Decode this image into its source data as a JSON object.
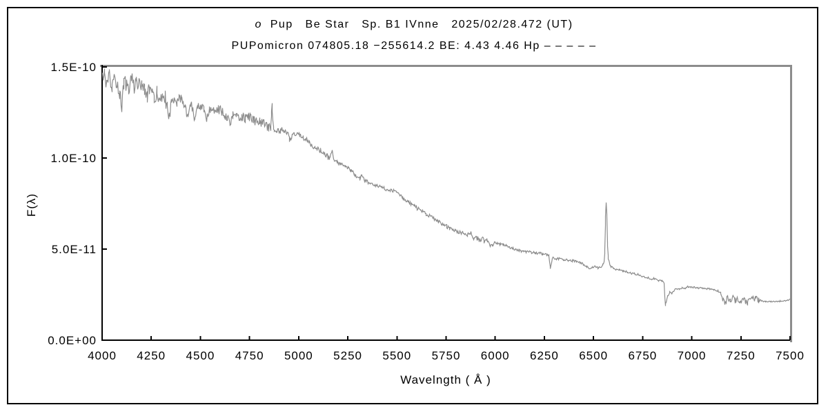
{
  "header": {
    "star_letter": "o",
    "title_rest": "  Pup   Be Star   Sp. B1 IVnne   2025/02/28.472 (UT)",
    "subtitle": "PUPomicron 074805.18 −255614.2 BE: 4.43 4.46 Hp – – – – –"
  },
  "chart_data": {
    "type": "line",
    "title": "o  Pup   Be Star   Sp. B1 IVnne   2025/02/28.472 (UT)",
    "subtitle": "PUPomicron 074805.18 −255614.2 BE: 4.43 4.46 Hp – – – – –",
    "xlabel": "Wavelngth ( Å )",
    "ylabel": "F(λ)",
    "xlim": [
      4000,
      7500
    ],
    "ylim_e11": [
      0,
      15
    ],
    "grid": false,
    "legend": false,
    "xticks": [
      4000,
      4250,
      4500,
      4750,
      5000,
      5250,
      5500,
      5750,
      6000,
      6250,
      6500,
      6750,
      7000,
      7250,
      7500
    ],
    "yticks": [
      {
        "value_e11": 0,
        "label": "0.0E+00"
      },
      {
        "value_e11": 5,
        "label": "5.0E-11"
      },
      {
        "value_e11": 10,
        "label": "1.0E-10"
      },
      {
        "value_e11": 15,
        "label": "1.5E-10"
      }
    ],
    "flux_scale": "1E-11",
    "colors": {
      "line": "#8c8c8c",
      "axis": "#000000",
      "bevel": "#8c8c8c",
      "background": "#ffffff"
    },
    "series": [
      {
        "name": "spectrum",
        "points_e11": [
          [
            4000,
            14.3
          ],
          [
            4012,
            14.7
          ],
          [
            4022,
            13.9
          ],
          [
            4035,
            14.5
          ],
          [
            4048,
            13.8
          ],
          [
            4060,
            14.4
          ],
          [
            4075,
            14.1
          ],
          [
            4088,
            13.6
          ],
          [
            4097,
            12.8
          ],
          [
            4110,
            14.3
          ],
          [
            4122,
            14.0
          ],
          [
            4135,
            13.7
          ],
          [
            4147,
            14.6
          ],
          [
            4160,
            13.9
          ],
          [
            4172,
            14.3
          ],
          [
            4185,
            14.0
          ],
          [
            4200,
            14.2
          ],
          [
            4215,
            13.7
          ],
          [
            4227,
            13.3
          ],
          [
            4240,
            13.9
          ],
          [
            4252,
            13.5
          ],
          [
            4265,
            13.1
          ],
          [
            4278,
            13.6
          ],
          [
            4290,
            13.4
          ],
          [
            4305,
            13.2
          ],
          [
            4318,
            13.4
          ],
          [
            4330,
            12.7
          ],
          [
            4340,
            12.4
          ],
          [
            4352,
            13.3
          ],
          [
            4365,
            13.1
          ],
          [
            4378,
            12.9
          ],
          [
            4390,
            13.3
          ],
          [
            4405,
            13.2
          ],
          [
            4420,
            13.0
          ],
          [
            4434,
            12.2
          ],
          [
            4448,
            13.0
          ],
          [
            4460,
            12.7
          ],
          [
            4471,
            12.0
          ],
          [
            4485,
            12.9
          ],
          [
            4500,
            12.9
          ],
          [
            4515,
            12.6
          ],
          [
            4530,
            12.2
          ],
          [
            4545,
            12.8
          ],
          [
            4560,
            12.6
          ],
          [
            4575,
            12.8
          ],
          [
            4590,
            12.7
          ],
          [
            4605,
            12.6
          ],
          [
            4620,
            12.4
          ],
          [
            4635,
            12.3
          ],
          [
            4650,
            11.9
          ],
          [
            4665,
            12.4
          ],
          [
            4680,
            12.3
          ],
          [
            4695,
            12.2
          ],
          [
            4710,
            12.3
          ],
          [
            4725,
            12.2
          ],
          [
            4740,
            12.3
          ],
          [
            4755,
            12.2
          ],
          [
            4770,
            12.1
          ],
          [
            4785,
            12.0
          ],
          [
            4800,
            12.0
          ],
          [
            4815,
            11.9
          ],
          [
            4830,
            11.8
          ],
          [
            4845,
            11.7
          ],
          [
            4855,
            11.6
          ],
          [
            4859,
            12.3
          ],
          [
            4862,
            13.0
          ],
          [
            4865,
            12.5
          ],
          [
            4869,
            11.7
          ],
          [
            4875,
            11.5
          ],
          [
            4885,
            11.5
          ],
          [
            4895,
            11.6
          ],
          [
            4905,
            11.5
          ],
          [
            4915,
            11.6
          ],
          [
            4925,
            11.4
          ],
          [
            4935,
            11.4
          ],
          [
            4945,
            11.3
          ],
          [
            4952,
            11.0
          ],
          [
            4962,
            11.2
          ],
          [
            4975,
            11.3
          ],
          [
            4990,
            11.4
          ],
          [
            5005,
            11.3
          ],
          [
            5020,
            11.2
          ],
          [
            5035,
            11.0
          ],
          [
            5050,
            10.9
          ],
          [
            5065,
            10.7
          ],
          [
            5080,
            10.6
          ],
          [
            5095,
            10.5
          ],
          [
            5110,
            10.4
          ],
          [
            5125,
            10.3
          ],
          [
            5140,
            10.2
          ],
          [
            5155,
            10.0
          ],
          [
            5169,
            10.4
          ],
          [
            5178,
            9.9
          ],
          [
            5192,
            9.8
          ],
          [
            5206,
            9.7
          ],
          [
            5220,
            9.65
          ],
          [
            5235,
            9.55
          ],
          [
            5250,
            9.45
          ],
          [
            5265,
            9.3
          ],
          [
            5280,
            9.15
          ],
          [
            5295,
            9.0
          ],
          [
            5310,
            8.9
          ],
          [
            5320,
            9.1
          ],
          [
            5332,
            8.8
          ],
          [
            5347,
            8.7
          ],
          [
            5362,
            8.6
          ],
          [
            5377,
            8.55
          ],
          [
            5392,
            8.5
          ],
          [
            5407,
            8.45
          ],
          [
            5422,
            8.4
          ],
          [
            5437,
            8.35
          ],
          [
            5452,
            8.3
          ],
          [
            5467,
            8.25
          ],
          [
            5482,
            8.2
          ],
          [
            5497,
            8.15
          ],
          [
            5512,
            8.0
          ],
          [
            5527,
            7.85
          ],
          [
            5542,
            7.7
          ],
          [
            5557,
            7.6
          ],
          [
            5572,
            7.5
          ],
          [
            5587,
            7.4
          ],
          [
            5602,
            7.25
          ],
          [
            5617,
            7.15
          ],
          [
            5632,
            7.05
          ],
          [
            5647,
            6.95
          ],
          [
            5662,
            6.85
          ],
          [
            5677,
            6.75
          ],
          [
            5692,
            6.65
          ],
          [
            5707,
            6.55
          ],
          [
            5722,
            6.45
          ],
          [
            5737,
            6.35
          ],
          [
            5752,
            6.25
          ],
          [
            5767,
            6.15
          ],
          [
            5782,
            6.1
          ],
          [
            5797,
            6.0
          ],
          [
            5812,
            5.95
          ],
          [
            5827,
            5.9
          ],
          [
            5842,
            5.85
          ],
          [
            5857,
            5.8
          ],
          [
            5876,
            5.9
          ],
          [
            5885,
            5.6
          ],
          [
            5895,
            5.65
          ],
          [
            5910,
            5.6
          ],
          [
            5925,
            5.55
          ],
          [
            5940,
            5.5
          ],
          [
            5955,
            5.45
          ],
          [
            5970,
            5.35
          ],
          [
            5985,
            5.15
          ],
          [
            5995,
            5.4
          ],
          [
            6010,
            5.35
          ],
          [
            6025,
            5.3
          ],
          [
            6040,
            5.25
          ],
          [
            6055,
            5.2
          ],
          [
            6070,
            5.1
          ],
          [
            6085,
            5.05
          ],
          [
            6100,
            5.0
          ],
          [
            6120,
            4.95
          ],
          [
            6140,
            4.9
          ],
          [
            6160,
            4.88
          ],
          [
            6180,
            4.85
          ],
          [
            6200,
            4.82
          ],
          [
            6220,
            4.8
          ],
          [
            6240,
            4.77
          ],
          [
            6258,
            4.72
          ],
          [
            6270,
            4.68
          ],
          [
            6280,
            4.0
          ],
          [
            6290,
            4.55
          ],
          [
            6305,
            4.5
          ],
          [
            6320,
            4.48
          ],
          [
            6335,
            4.45
          ],
          [
            6350,
            4.42
          ],
          [
            6370,
            4.42
          ],
          [
            6390,
            4.38
          ],
          [
            6410,
            4.33
          ],
          [
            6430,
            4.28
          ],
          [
            6450,
            4.15
          ],
          [
            6465,
            4.05
          ],
          [
            6480,
            3.95
          ],
          [
            6495,
            4.0
          ],
          [
            6510,
            4.05
          ],
          [
            6522,
            4.0
          ],
          [
            6535,
            4.05
          ],
          [
            6545,
            4.15
          ],
          [
            6552,
            4.3
          ],
          [
            6557,
            5.0
          ],
          [
            6560,
            6.8
          ],
          [
            6563,
            7.6
          ],
          [
            6566,
            6.9
          ],
          [
            6570,
            5.2
          ],
          [
            6574,
            4.5
          ],
          [
            6580,
            4.2
          ],
          [
            6588,
            4.05
          ],
          [
            6600,
            3.95
          ],
          [
            6615,
            3.9
          ],
          [
            6630,
            3.88
          ],
          [
            6650,
            3.82
          ],
          [
            6670,
            3.76
          ],
          [
            6690,
            3.7
          ],
          [
            6710,
            3.65
          ],
          [
            6730,
            3.6
          ],
          [
            6750,
            3.5
          ],
          [
            6770,
            3.45
          ],
          [
            6790,
            3.4
          ],
          [
            6810,
            3.38
          ],
          [
            6830,
            3.32
          ],
          [
            6848,
            3.25
          ],
          [
            6858,
            3.15
          ],
          [
            6863,
            1.95
          ],
          [
            6868,
            2.1
          ],
          [
            6875,
            2.4
          ],
          [
            6885,
            2.65
          ],
          [
            6895,
            2.55
          ],
          [
            6905,
            2.7
          ],
          [
            6920,
            2.85
          ],
          [
            6935,
            2.8
          ],
          [
            6950,
            2.9
          ],
          [
            6965,
            2.85
          ],
          [
            6980,
            2.95
          ],
          [
            6995,
            2.9
          ],
          [
            7010,
            2.92
          ],
          [
            7030,
            2.9
          ],
          [
            7050,
            2.88
          ],
          [
            7070,
            2.85
          ],
          [
            7090,
            2.82
          ],
          [
            7110,
            2.78
          ],
          [
            7130,
            2.72
          ],
          [
            7145,
            2.6
          ],
          [
            7158,
            2.25
          ],
          [
            7170,
            2.1
          ],
          [
            7182,
            2.45
          ],
          [
            7195,
            2.1
          ],
          [
            7208,
            2.5
          ],
          [
            7220,
            2.2
          ],
          [
            7232,
            2.35
          ],
          [
            7245,
            2.05
          ],
          [
            7258,
            2.3
          ],
          [
            7270,
            2.15
          ],
          [
            7282,
            2.1
          ],
          [
            7295,
            2.4
          ],
          [
            7310,
            2.3
          ],
          [
            7325,
            2.28
          ],
          [
            7340,
            2.22
          ],
          [
            7355,
            2.18
          ],
          [
            7375,
            2.15
          ],
          [
            7400,
            2.15
          ],
          [
            7425,
            2.16
          ],
          [
            7450,
            2.15
          ],
          [
            7475,
            2.18
          ],
          [
            7500,
            2.25
          ]
        ]
      }
    ],
    "features": [
      {
        "type": "absorption-dip",
        "wavelength": 4102,
        "min_flux_e11": 12.8
      },
      {
        "type": "absorption-dip",
        "wavelength": 4340,
        "min_flux_e11": 12.4
      },
      {
        "type": "absorption-dip",
        "wavelength": 4471,
        "min_flux_e11": 12.0
      },
      {
        "type": "emission-spike",
        "wavelength": 4861,
        "peak_flux_e11": 13.0
      },
      {
        "type": "absorption-dip",
        "wavelength": 6280,
        "min_flux_e11": 4.0
      },
      {
        "type": "emission-spike",
        "wavelength": 6563,
        "peak_flux_e11": 7.6
      },
      {
        "type": "absorption-dip",
        "wavelength": 6865,
        "min_flux_e11": 1.95
      },
      {
        "type": "noisy-depression",
        "range": [
          7150,
          7350
        ],
        "min_flux_e11": 2.05
      }
    ],
    "noise_seed": 12345,
    "noise_segments_e11": [
      [
        4000,
        4350,
        0.4
      ],
      [
        4350,
        4855,
        0.26
      ],
      [
        4855,
        4885,
        0.07
      ],
      [
        4885,
        5150,
        0.16
      ],
      [
        5150,
        5900,
        0.1
      ],
      [
        5900,
        5990,
        0.16
      ],
      [
        5990,
        6270,
        0.07
      ],
      [
        6270,
        6540,
        0.06
      ],
      [
        6540,
        6595,
        0.04
      ],
      [
        6595,
        6850,
        0.05
      ],
      [
        6850,
        7150,
        0.05
      ],
      [
        7150,
        7350,
        0.17
      ],
      [
        7350,
        7500,
        0.03
      ]
    ]
  }
}
